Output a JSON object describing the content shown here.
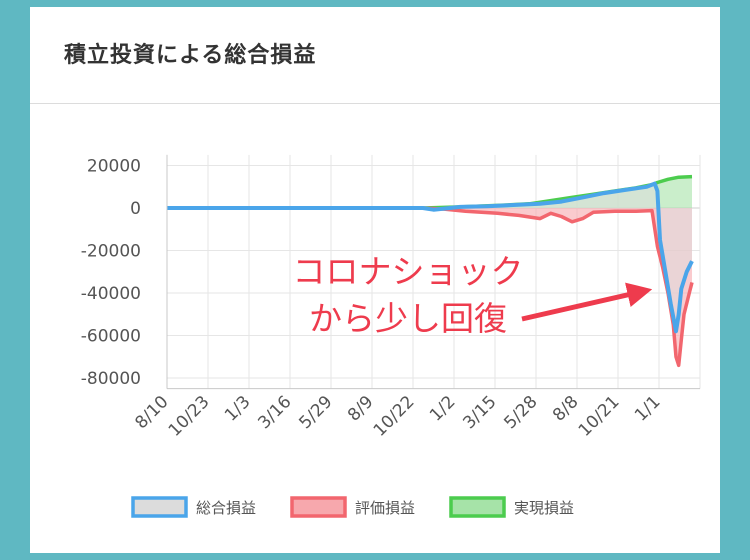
{
  "card": {
    "title": "積立投資による総合損益"
  },
  "chart_data": {
    "type": "line",
    "title": "",
    "ylim": [
      -85000,
      25000
    ],
    "y_ticks": [
      20000,
      0,
      -20000,
      -40000,
      -60000,
      -80000
    ],
    "y_tick_labels": [
      "20000",
      "0",
      "-20000",
      "-40000",
      "-60000",
      "-80000"
    ],
    "x_tick_labels": [
      "8/10",
      "10/23",
      "1/3",
      "3/16",
      "5/29",
      "8/9",
      "10/22",
      "1/2",
      "3/15",
      "5/28",
      "8/8",
      "10/21",
      "1/1"
    ],
    "x_range": [
      0,
      100
    ],
    "grid": true,
    "legend_position": "bottom",
    "series": [
      {
        "name": "総合損益",
        "color": "#4aa5ea",
        "fill": "#dcdcdc",
        "points": [
          [
            0,
            0
          ],
          [
            48,
            0
          ],
          [
            50,
            -800
          ],
          [
            52,
            -300
          ],
          [
            55,
            500
          ],
          [
            60,
            800
          ],
          [
            66,
            1500
          ],
          [
            70,
            2000
          ],
          [
            74,
            3000
          ],
          [
            78,
            5000
          ],
          [
            82,
            7000
          ],
          [
            86,
            8500
          ],
          [
            90,
            10000
          ],
          [
            91.5,
            11500
          ],
          [
            92,
            8000
          ],
          [
            92.5,
            -15000
          ],
          [
            93.5,
            -30000
          ],
          [
            94.5,
            -45000
          ],
          [
            95.5,
            -58000
          ],
          [
            96,
            -50000
          ],
          [
            96.5,
            -38000
          ],
          [
            97.5,
            -30000
          ],
          [
            98.5,
            -25000
          ]
        ]
      },
      {
        "name": "評価損益",
        "color": "#f2666e",
        "fill": "#f7a8ad",
        "points": [
          [
            0,
            0
          ],
          [
            48,
            0
          ],
          [
            52,
            -500
          ],
          [
            56,
            -1500
          ],
          [
            62,
            -2500
          ],
          [
            66,
            -3500
          ],
          [
            70,
            -5000
          ],
          [
            72,
            -2500
          ],
          [
            74,
            -4000
          ],
          [
            76,
            -6500
          ],
          [
            78,
            -5000
          ],
          [
            80,
            -2000
          ],
          [
            84,
            -1500
          ],
          [
            88,
            -1500
          ],
          [
            91,
            -1200
          ],
          [
            92,
            -18000
          ],
          [
            93,
            -28000
          ],
          [
            94,
            -40000
          ],
          [
            95,
            -55000
          ],
          [
            95.5,
            -70000
          ],
          [
            96,
            -74000
          ],
          [
            96.5,
            -62000
          ],
          [
            97,
            -50000
          ],
          [
            98,
            -40000
          ],
          [
            98.5,
            -35000
          ]
        ]
      },
      {
        "name": "実現損益",
        "color": "#4ccc4e",
        "fill": "#a6e3a8",
        "points": [
          [
            0,
            0
          ],
          [
            48,
            0
          ],
          [
            55,
            500
          ],
          [
            62,
            1200
          ],
          [
            68,
            2000
          ],
          [
            72,
            3500
          ],
          [
            76,
            5000
          ],
          [
            80,
            6500
          ],
          [
            84,
            8000
          ],
          [
            88,
            9500
          ],
          [
            91,
            11000
          ],
          [
            92,
            12000
          ],
          [
            94,
            13500
          ],
          [
            96,
            14500
          ],
          [
            98.5,
            14800
          ]
        ]
      }
    ],
    "annotations": [
      {
        "lines": [
          "コロナショック",
          "から少し回復"
        ]
      }
    ]
  }
}
